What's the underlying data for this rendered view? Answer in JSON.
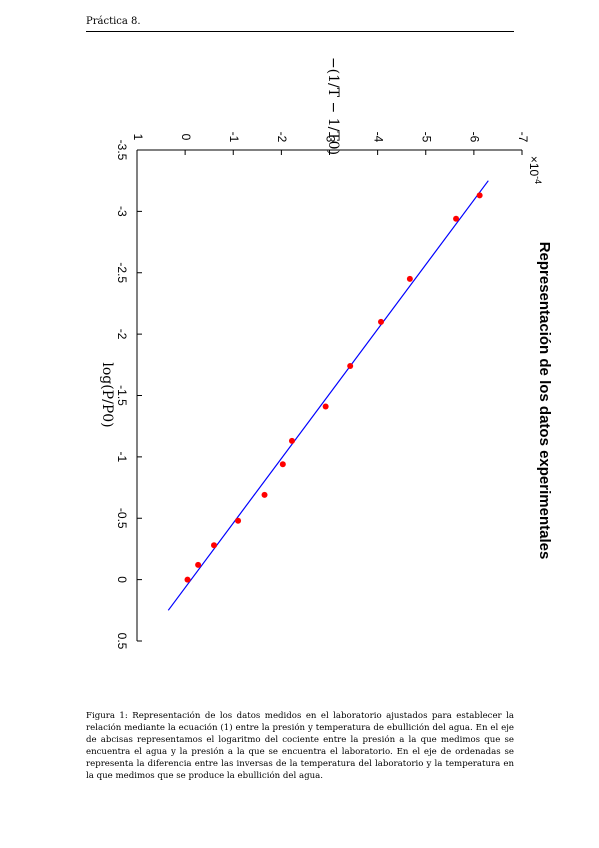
{
  "page": {
    "header": "Práctica 8.",
    "caption": "Figura 1: Representación de los datos medidos en el laboratorio ajustados para establecer la relación mediante la ecuación (1) entre la presión y temperatura de ebullición del agua. En el eje de abcisas representamos el logaritmo del cociente entre la presión a la que medimos que se encuentra el agua y la presión a la que se encuentra el laboratorio. En el eje de ordenadas se representa la diferencia entre las inversas de la temperatura del laboratorio y la temperatura en la que medimos que se produce la ebullición del agua."
  },
  "chart_data": {
    "type": "scatter",
    "title": "Representación de los datos experimentales",
    "xlabel": "log(P/P0)",
    "ylabel": "−(1/T − 1/T0)",
    "y_multiplier": "×10^-4",
    "xlim": [
      -3.5,
      0.5
    ],
    "ylim": [
      -7,
      1
    ],
    "x_ticks": [
      "-3.5",
      "-3",
      "-2.5",
      "-2",
      "-1.5",
      "-1",
      "-0.5",
      "0",
      "0.5"
    ],
    "y_ticks": [
      "-7",
      "-6",
      "-5",
      "-4",
      "-3",
      "-2",
      "-1",
      "0",
      "1"
    ],
    "points_color": "#ff0000",
    "fit_line_color": "#0000ff",
    "series": [
      {
        "name": "",
        "x": [
          -3.13,
          -2.94,
          -2.45,
          -2.1,
          -1.74,
          -1.41,
          -1.13,
          -0.94,
          -0.69,
          -0.48,
          -0.28,
          -0.12,
          0.0
        ],
        "y": [
          -6.12,
          -5.63,
          -4.67,
          -4.07,
          -3.43,
          -2.92,
          -2.22,
          -2.03,
          -1.65,
          -1.1,
          -0.6,
          -0.27,
          -0.05
        ]
      }
    ],
    "fit_line": {
      "x": [
        -3.25,
        0.25
      ],
      "y": [
        -6.3,
        0.35
      ]
    }
  }
}
